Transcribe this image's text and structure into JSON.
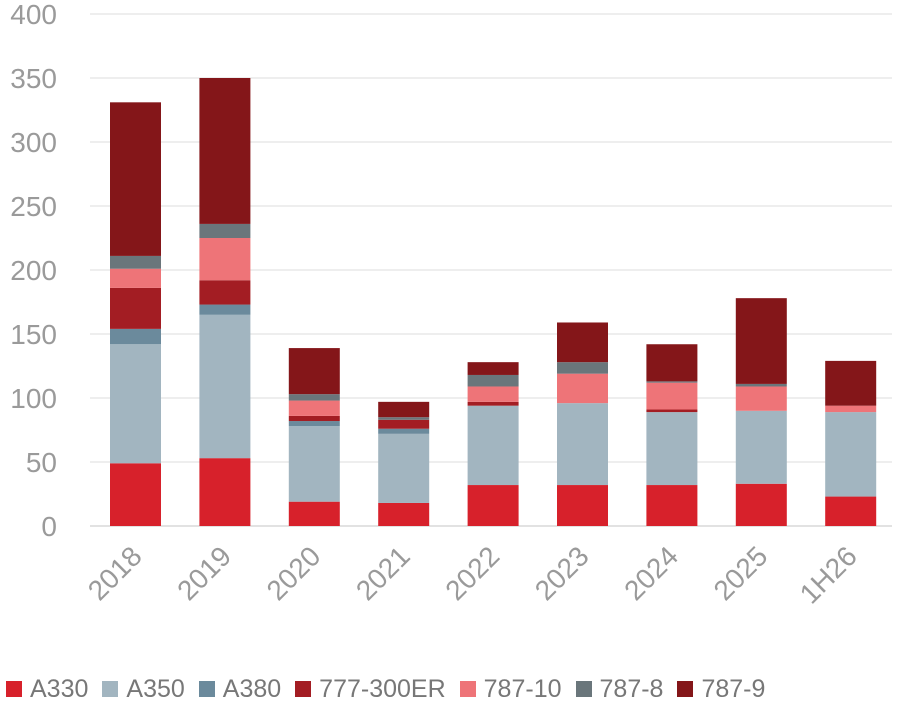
{
  "chart_data": {
    "type": "bar",
    "stacked": true,
    "categories": [
      "2018",
      "2019",
      "2020",
      "2021",
      "2022",
      "2023",
      "2024",
      "2025",
      "1H26"
    ],
    "ylim": [
      0,
      400
    ],
    "yticks": [
      0,
      50,
      100,
      150,
      200,
      250,
      300,
      350,
      400
    ],
    "grid": true,
    "legend_position": "bottom",
    "series": [
      {
        "name": "A330",
        "color": "#d7212b",
        "values": [
          49,
          53,
          19,
          18,
          32,
          32,
          32,
          33,
          23
        ]
      },
      {
        "name": "A350",
        "color": "#a2b5c0",
        "values": [
          93,
          112,
          59,
          54,
          62,
          64,
          57,
          57,
          66
        ]
      },
      {
        "name": "A380",
        "color": "#6b8a9c",
        "values": [
          12,
          8,
          4,
          4,
          0,
          0,
          0,
          0,
          0
        ]
      },
      {
        "name": "777-300ER",
        "color": "#a31d23",
        "values": [
          32,
          19,
          4,
          7,
          3,
          0,
          2,
          0,
          0
        ]
      },
      {
        "name": "787-10",
        "color": "#ee7478",
        "values": [
          15,
          33,
          12,
          0,
          12,
          23,
          21,
          19,
          5
        ]
      },
      {
        "name": "787-8",
        "color": "#6a767b",
        "values": [
          10,
          11,
          5,
          2,
          9,
          9,
          1,
          2,
          0
        ]
      },
      {
        "name": "787-9",
        "color": "#841619",
        "values": [
          120,
          114,
          36,
          12,
          10,
          31,
          29,
          67,
          35
        ]
      }
    ]
  }
}
